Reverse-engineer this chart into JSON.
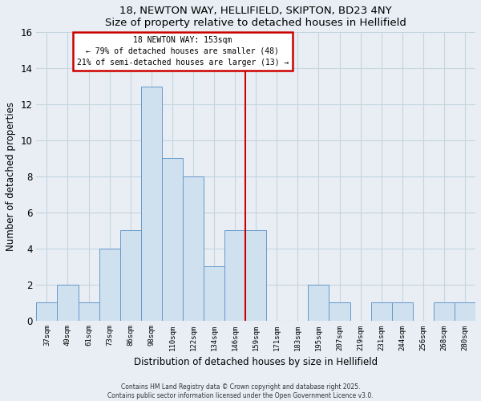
{
  "title": "18, NEWTON WAY, HELLIFIELD, SKIPTON, BD23 4NY",
  "subtitle": "Size of property relative to detached houses in Hellifield",
  "xlabel": "Distribution of detached houses by size in Hellifield",
  "ylabel": "Number of detached properties",
  "bin_labels": [
    "37sqm",
    "49sqm",
    "61sqm",
    "73sqm",
    "86sqm",
    "98sqm",
    "110sqm",
    "122sqm",
    "134sqm",
    "146sqm",
    "159sqm",
    "171sqm",
    "183sqm",
    "195sqm",
    "207sqm",
    "219sqm",
    "231sqm",
    "244sqm",
    "256sqm",
    "268sqm",
    "280sqm"
  ],
  "bar_heights": [
    1,
    2,
    1,
    4,
    5,
    13,
    9,
    8,
    3,
    5,
    5,
    0,
    0,
    2,
    1,
    0,
    1,
    1,
    0,
    1,
    1
  ],
  "bar_color": "#cfe0ef",
  "bar_edge_color": "#6699cc",
  "grid_color": "#c5d5e0",
  "vline_x": 10.0,
  "vline_color": "#cc0000",
  "annotation_title": "18 NEWTON WAY: 153sqm",
  "annotation_line1": "← 79% of detached houses are smaller (48)",
  "annotation_line2": "21% of semi-detached houses are larger (13) →",
  "annotation_box_color": "#ffffff",
  "annotation_box_edge_color": "#cc0000",
  "ylim": [
    0,
    16
  ],
  "yticks": [
    0,
    2,
    4,
    6,
    8,
    10,
    12,
    14,
    16
  ],
  "footnote1": "Contains HM Land Registry data © Crown copyright and database right 2025.",
  "footnote2": "Contains public sector information licensed under the Open Government Licence v3.0.",
  "figure_background_color": "#e8eef4",
  "plot_background_color": "#e8eef4"
}
